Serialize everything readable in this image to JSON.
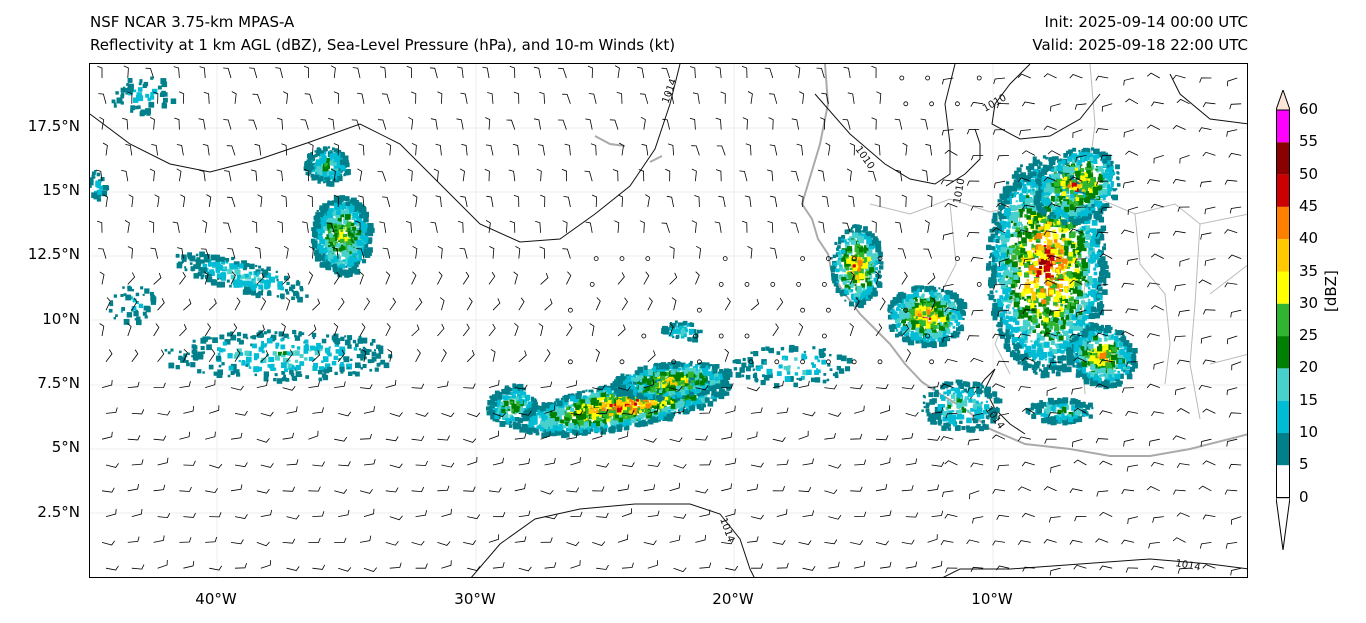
{
  "titles": {
    "left_line1": "NSF NCAR 3.75-km MPAS-A",
    "left_line2": "Reflectivity at 1 km AGL (dBZ), Sea-Level Pressure (hPa), and 10-m Winds (kt)",
    "right_line1": "Init: 2025-09-14 00:00 UTC",
    "right_line2": "Valid: 2025-09-18 22:00 UTC"
  },
  "axes": {
    "latitude_labels": [
      "17.5°N",
      "15°N",
      "12.5°N",
      "10°N",
      "7.5°N",
      "5°N",
      "2.5°N"
    ],
    "longitude_labels": [
      "40°W",
      "30°W",
      "20°W",
      "10°W"
    ]
  },
  "colorbar": {
    "unit": "[dBZ]",
    "ticks": [
      "60",
      "55",
      "50",
      "45",
      "40",
      "35",
      "30",
      "25",
      "20",
      "15",
      "10",
      "5",
      "0"
    ],
    "colors": [
      "#ffe4d8",
      "#ff00ff",
      "#8b0000",
      "#cc0000",
      "#ff7f00",
      "#ffc800",
      "#ffff00",
      "#2fb52f",
      "#008000",
      "#48d1cc",
      "#00bcd4",
      "#00808b",
      "#ffffff"
    ]
  },
  "isobars": {
    "labels": [
      "1014",
      "1010",
      "1010",
      "1010",
      "1014",
      "1014",
      "1014"
    ]
  }
}
